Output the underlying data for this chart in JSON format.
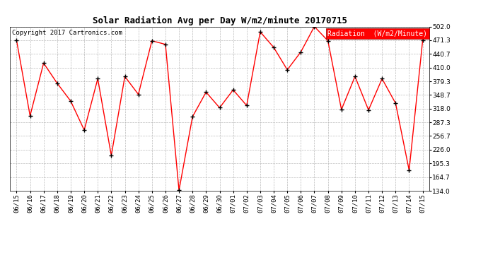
{
  "title": "Solar Radiation Avg per Day W/m2/minute 20170715",
  "copyright_text": "Copyright 2017 Cartronics.com",
  "legend_label": "Radiation  (W/m2/Minute)",
  "dates": [
    "06/15",
    "06/16",
    "06/17",
    "06/18",
    "06/19",
    "06/20",
    "06/21",
    "06/22",
    "06/23",
    "06/24",
    "06/25",
    "06/26",
    "06/27",
    "06/28",
    "06/29",
    "06/30",
    "07/01",
    "07/02",
    "07/03",
    "07/04",
    "07/05",
    "07/06",
    "07/07",
    "07/08",
    "07/09",
    "07/10",
    "07/11",
    "07/12",
    "07/13",
    "07/14",
    "07/15"
  ],
  "values": [
    471.3,
    302.0,
    420.0,
    375.0,
    335.0,
    270.0,
    385.0,
    213.0,
    390.0,
    350.0,
    470.0,
    462.0,
    135.0,
    300.0,
    355.0,
    320.0,
    360.0,
    325.0,
    490.0,
    455.0,
    405.0,
    445.0,
    502.0,
    470.0,
    316.0,
    390.0,
    315.0,
    385.0,
    330.0,
    180.0,
    471.3
  ],
  "ylim": [
    134.0,
    502.0
  ],
  "yticks": [
    134.0,
    164.7,
    195.3,
    226.0,
    256.7,
    287.3,
    318.0,
    348.7,
    379.3,
    410.0,
    440.7,
    471.3,
    502.0
  ],
  "line_color": "red",
  "marker_color": "black",
  "bg_color": "#ffffff",
  "plot_bg_color": "#ffffff",
  "grid_color": "#aaaaaa",
  "title_fontsize": 9,
  "copyright_fontsize": 6.5,
  "tick_fontsize": 6.5,
  "legend_fontsize": 7
}
